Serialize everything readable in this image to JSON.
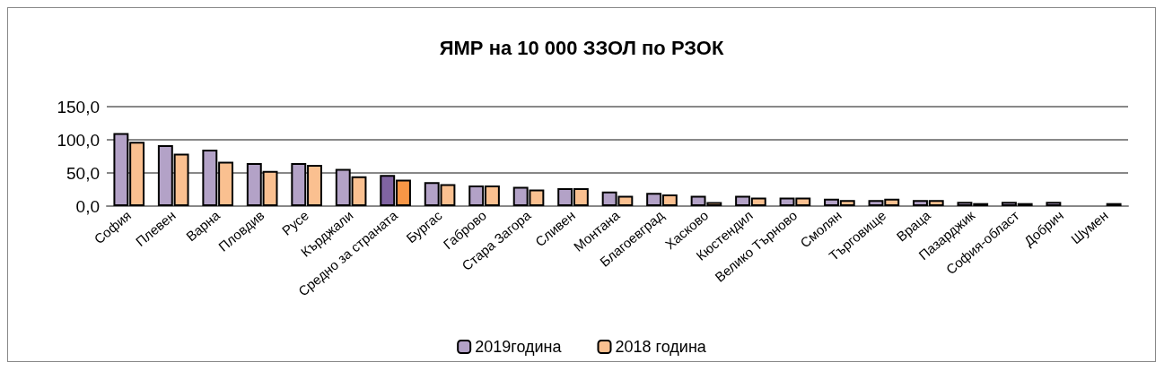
{
  "chart_data": {
    "type": "bar",
    "title": "ЯМР на 10 000 ЗЗОЛ по РЗОК",
    "categories": [
      "София",
      "Плевен",
      "Варна",
      "Пловдив",
      "Русе",
      "Кърджали",
      "Средно за страната",
      "Бургас",
      "Габрово",
      "Стара Загора",
      "Сливен",
      "Монтана",
      "Благоевград",
      "Хасково",
      "Кюстендил",
      "Велико Търново",
      "Смолян",
      "Търговище",
      "Враца",
      "Пазарджик",
      "София-област",
      "Добрич",
      "Шумен"
    ],
    "series": [
      {
        "name": "2019година",
        "color": "#b3a2c7",
        "colors": [
          "#b3a2c7",
          "#b3a2c7",
          "#b3a2c7",
          "#b3a2c7",
          "#b3a2c7",
          "#b3a2c7",
          "#8064a2",
          "#b3a2c7",
          "#b3a2c7",
          "#b3a2c7",
          "#b3a2c7",
          "#b3a2c7",
          "#b3a2c7",
          "#b3a2c7",
          "#b3a2c7",
          "#b3a2c7",
          "#b3a2c7",
          "#b3a2c7",
          "#b3a2c7",
          "#b3a2c7",
          "#b3a2c7",
          "#b3a2c7",
          "#b3a2c7"
        ],
        "values": [
          110,
          92,
          85,
          65,
          65,
          56,
          47,
          36,
          31,
          29,
          27,
          22,
          20,
          15.5,
          15.5,
          13,
          11,
          9,
          9,
          6.5,
          6.5,
          6.5,
          null
        ]
      },
      {
        "name": "2018 година",
        "color": "#fac090",
        "colors": [
          "#fac090",
          "#fac090",
          "#fac090",
          "#fac090",
          "#fac090",
          "#fac090",
          "#f79646",
          "#fac090",
          "#fac090",
          "#fac090",
          "#fac090",
          "#fac090",
          "#fac090",
          "#fac090",
          "#fac090",
          "#fac090",
          "#fac090",
          "#fac090",
          "#fac090",
          "#fac090",
          "#fac090",
          "#fac090",
          "#fac090"
        ],
        "values": [
          97,
          79,
          67,
          53,
          62,
          45,
          40,
          33,
          31,
          25,
          27,
          15.5,
          17.5,
          6,
          13,
          13,
          9,
          11,
          9,
          4.5,
          4.5,
          null,
          4.5
        ]
      }
    ],
    "ylim": [
      0,
      150
    ],
    "yticks": [
      {
        "value": 0,
        "label": "0,0"
      },
      {
        "value": 50,
        "label": "50,0"
      },
      {
        "value": 100,
        "label": "100,0"
      },
      {
        "value": 150,
        "label": "150,0"
      }
    ],
    "grid": "y",
    "legend": "bottom"
  }
}
